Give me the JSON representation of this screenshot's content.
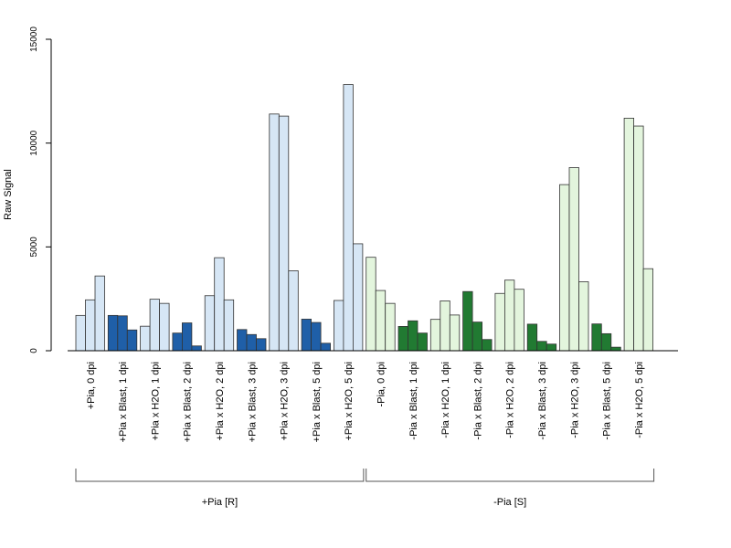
{
  "chart_data": {
    "type": "bar",
    "title": "",
    "xlabel": "",
    "ylabel": "Raw Signal",
    "ylim": [
      0,
      15000
    ],
    "yticks": [
      0,
      5000,
      10000,
      15000
    ],
    "categories": [
      "+Pia, 0 dpi",
      "+Pia x Blast, 1 dpi",
      "+Pia x H2O, 1 dpi",
      "+Pia x Blast, 2 dpi",
      "+Pia x H2O, 2 dpi",
      "+Pia x Blast, 3 dpi",
      "+Pia x H2O, 3 dpi",
      "+Pia x Blast, 5 dpi",
      "+Pia x H2O, 5 dpi",
      "-Pia, 0 dpi",
      "-Pia x Blast, 1 dpi",
      "-Pia x H2O, 1 dpi",
      "-Pia x Blast, 2 dpi",
      "-Pia x H2O, 2 dpi",
      "-Pia x Blast, 3 dpi",
      "-Pia x H2O, 3 dpi",
      "-Pia x Blast, 5 dpi",
      "-Pia x H2O, 5 dpi"
    ],
    "replicates": [
      [
        1700,
        2450,
        3600
      ],
      [
        1700,
        1680,
        1000
      ],
      [
        1180,
        2480,
        2280
      ],
      [
        850,
        1340,
        230
      ],
      [
        2650,
        4480,
        2450
      ],
      [
        1020,
        780,
        580
      ],
      [
        11400,
        11300,
        3850
      ],
      [
        1520,
        1360,
        360
      ],
      [
        2420,
        12820,
        5150
      ],
      [
        4500,
        2900,
        2280
      ],
      [
        1170,
        1440,
        850
      ],
      [
        1510,
        2400,
        1720
      ],
      [
        2850,
        1380,
        540
      ],
      [
        2760,
        3400,
        2960
      ],
      [
        1280,
        450,
        320
      ],
      [
        8000,
        8820,
        3320
      ],
      [
        1290,
        820,
        170
      ],
      [
        11200,
        10820,
        3950
      ]
    ],
    "bar_colors": [
      "#d6e6f5",
      "#1f5fa8",
      "#d6e6f5",
      "#1f5fa8",
      "#d6e6f5",
      "#1f5fa8",
      "#d6e6f5",
      "#1f5fa8",
      "#d6e6f5",
      "#e3f5dd",
      "#217a32",
      "#e3f5dd",
      "#217a32",
      "#e3f5dd",
      "#217a32",
      "#e3f5dd",
      "#217a32",
      "#e3f5dd"
    ],
    "groups": [
      {
        "label": "+Pia [R]",
        "from": 0,
        "to": 8
      },
      {
        "label": "-Pia [S]",
        "from": 9,
        "to": 17
      }
    ],
    "grid": false
  }
}
